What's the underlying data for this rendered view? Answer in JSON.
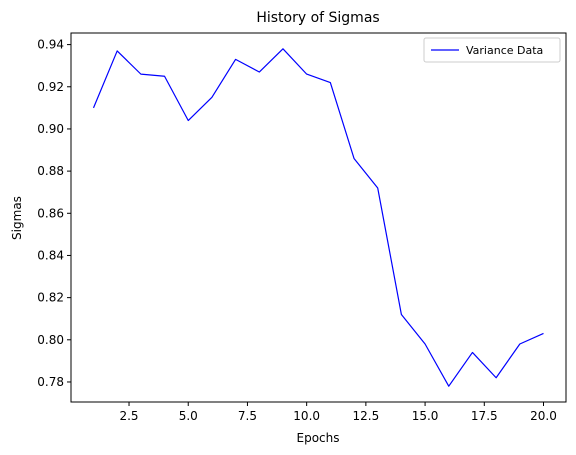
{
  "chart_data": {
    "type": "line",
    "title": "History of Sigmas",
    "xlabel": "Epochs",
    "ylabel": "Sigmas",
    "xlim": [
      0.05,
      20.95
    ],
    "ylim": [
      0.7705,
      0.9455
    ],
    "xticks": [
      2.5,
      5.0,
      7.5,
      10.0,
      12.5,
      15.0,
      17.5,
      20.0
    ],
    "xtick_labels": [
      "2.5",
      "5.0",
      "7.5",
      "10.0",
      "12.5",
      "15.0",
      "17.5",
      "20.0"
    ],
    "yticks": [
      0.78,
      0.8,
      0.82,
      0.84,
      0.86,
      0.88,
      0.9,
      0.92,
      0.94
    ],
    "ytick_labels": [
      "0.78",
      "0.80",
      "0.82",
      "0.84",
      "0.86",
      "0.88",
      "0.90",
      "0.92",
      "0.94"
    ],
    "grid": false,
    "legend_position": "top-right",
    "series": [
      {
        "name": "Variance Data",
        "color": "#0000ff",
        "x": [
          1,
          2,
          3,
          4,
          5,
          6,
          7,
          8,
          9,
          10,
          11,
          12,
          13,
          14,
          15,
          16,
          17,
          18,
          19,
          20
        ],
        "y": [
          0.91,
          0.937,
          0.926,
          0.925,
          0.904,
          0.915,
          0.933,
          0.927,
          0.938,
          0.926,
          0.922,
          0.886,
          0.872,
          0.812,
          0.798,
          0.778,
          0.794,
          0.782,
          0.798,
          0.803
        ]
      }
    ]
  }
}
